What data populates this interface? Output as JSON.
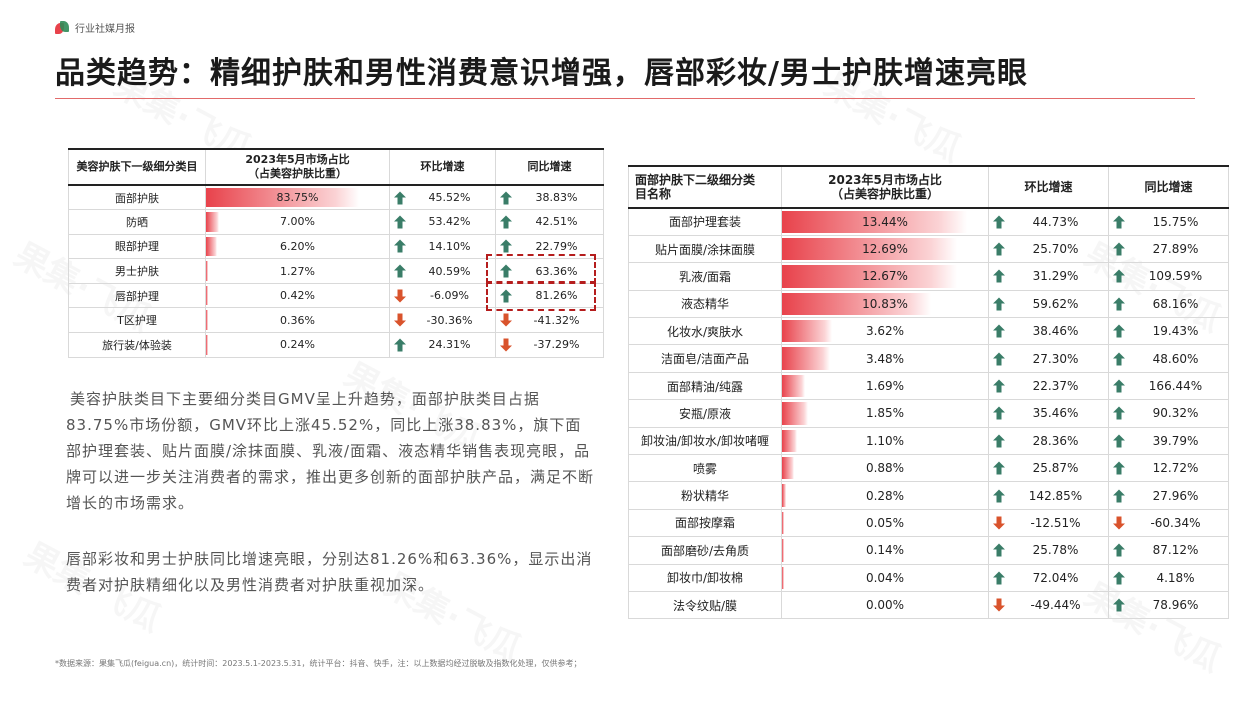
{
  "header": {
    "brand": "行业社媒月报"
  },
  "title": "品类趋势：精细护肤和男性消费意识增强，唇部彩妆/男士护肤增速亮眼",
  "colors": {
    "accent": "#e8424b",
    "up": "#3a7d68",
    "down": "#d9532c",
    "highlight_box": "#b51d1d"
  },
  "table1": {
    "headers": [
      "美容护肤下一级细分类目",
      "2023年5月市场占比\n（占美容护肤比重）",
      "环比增速",
      "同比增速"
    ],
    "rows": [
      {
        "name": "面部护肤",
        "share": "83.75%",
        "share_num": 83.75,
        "mom": "45.52%",
        "mom_dir": "up",
        "yoy": "38.83%",
        "yoy_dir": "up"
      },
      {
        "name": "防晒",
        "share": "7.00%",
        "share_num": 7.0,
        "mom": "53.42%",
        "mom_dir": "up",
        "yoy": "42.51%",
        "yoy_dir": "up"
      },
      {
        "name": "眼部护理",
        "share": "6.20%",
        "share_num": 6.2,
        "mom": "14.10%",
        "mom_dir": "up",
        "yoy": "22.79%",
        "yoy_dir": "up"
      },
      {
        "name": "男士护肤",
        "share": "1.27%",
        "share_num": 1.27,
        "mom": "40.59%",
        "mom_dir": "up",
        "yoy": "63.36%",
        "yoy_dir": "up"
      },
      {
        "name": "唇部护理",
        "share": "0.42%",
        "share_num": 0.42,
        "mom": "-6.09%",
        "mom_dir": "down",
        "yoy": "81.26%",
        "yoy_dir": "up"
      },
      {
        "name": "T区护理",
        "share": "0.36%",
        "share_num": 0.36,
        "mom": "-30.36%",
        "mom_dir": "down",
        "yoy": "-41.32%",
        "yoy_dir": "down"
      },
      {
        "name": "旅行装/体验装",
        "share": "0.24%",
        "share_num": 0.24,
        "mom": "24.31%",
        "mom_dir": "up",
        "yoy": "-37.29%",
        "yoy_dir": "down"
      }
    ]
  },
  "table2": {
    "headers": [
      "面部护肤下二级细分类\n目名称",
      "2023年5月市场占比\n（占美容护肤比重）",
      "环比增速",
      "同比增速"
    ],
    "rows": [
      {
        "name": "面部护理套装",
        "share": "13.44%",
        "share_num": 13.44,
        "mom": "44.73%",
        "mom_dir": "up",
        "yoy": "15.75%",
        "yoy_dir": "up"
      },
      {
        "name": "贴片面膜/涂抹面膜",
        "share": "12.69%",
        "share_num": 12.69,
        "mom": "25.70%",
        "mom_dir": "up",
        "yoy": "27.89%",
        "yoy_dir": "up"
      },
      {
        "name": "乳液/面霜",
        "share": "12.67%",
        "share_num": 12.67,
        "mom": "31.29%",
        "mom_dir": "up",
        "yoy": "109.59%",
        "yoy_dir": "up"
      },
      {
        "name": "液态精华",
        "share": "10.83%",
        "share_num": 10.83,
        "mom": "59.62%",
        "mom_dir": "up",
        "yoy": "68.16%",
        "yoy_dir": "up"
      },
      {
        "name": "化妆水/爽肤水",
        "share": "3.62%",
        "share_num": 3.62,
        "mom": "38.46%",
        "mom_dir": "up",
        "yoy": "19.43%",
        "yoy_dir": "up"
      },
      {
        "name": "洁面皂/洁面产品",
        "share": "3.48%",
        "share_num": 3.48,
        "mom": "27.30%",
        "mom_dir": "up",
        "yoy": "48.60%",
        "yoy_dir": "up"
      },
      {
        "name": "面部精油/纯露",
        "share": "1.69%",
        "share_num": 1.69,
        "mom": "22.37%",
        "mom_dir": "up",
        "yoy": "166.44%",
        "yoy_dir": "up"
      },
      {
        "name": "安瓶/原液",
        "share": "1.85%",
        "share_num": 1.85,
        "mom": "35.46%",
        "mom_dir": "up",
        "yoy": "90.32%",
        "yoy_dir": "up"
      },
      {
        "name": "卸妆油/卸妆水/卸妆啫喱",
        "share": "1.10%",
        "share_num": 1.1,
        "mom": "28.36%",
        "mom_dir": "up",
        "yoy": "39.79%",
        "yoy_dir": "up"
      },
      {
        "name": "喷雾",
        "share": "0.88%",
        "share_num": 0.88,
        "mom": "25.87%",
        "mom_dir": "up",
        "yoy": "12.72%",
        "yoy_dir": "up"
      },
      {
        "name": "粉状精华",
        "share": "0.28%",
        "share_num": 0.28,
        "mom": "142.85%",
        "mom_dir": "up",
        "yoy": "27.96%",
        "yoy_dir": "up"
      },
      {
        "name": "面部按摩霜",
        "share": "0.05%",
        "share_num": 0.05,
        "mom": "-12.51%",
        "mom_dir": "down",
        "yoy": "-60.34%",
        "yoy_dir": "down"
      },
      {
        "name": "面部磨砂/去角质",
        "share": "0.14%",
        "share_num": 0.14,
        "mom": "25.78%",
        "mom_dir": "up",
        "yoy": "87.12%",
        "yoy_dir": "up"
      },
      {
        "name": "卸妆巾/卸妆棉",
        "share": "0.04%",
        "share_num": 0.04,
        "mom": "72.04%",
        "mom_dir": "up",
        "yoy": "4.18%",
        "yoy_dir": "up"
      },
      {
        "name": "法令纹贴/膜",
        "share": "0.00%",
        "share_num": 0.0,
        "mom": "-49.44%",
        "mom_dir": "down",
        "yoy": "78.96%",
        "yoy_dir": "up"
      }
    ]
  },
  "paragraphs": {
    "p1": "美容护肤类目下主要细分类目GMV呈上升趋势，面部护肤类目占据83.75%市场份额，GMV环比上涨45.52%，同比上涨38.83%，旗下面部护理套装、贴片面膜/涂抹面膜、乳液/面霜、液态精华销售表现亮眼，品牌可以进一步关注消费者的需求，推出更多创新的面部护肤产品，满足不断增长的市场需求。",
    "p2": "唇部彩妆和男士护肤同比增速亮眼，分别达81.26%和63.36%，显示出消费者对护肤精细化以及男性消费者对护肤重视加深。"
  },
  "footnote": "*数据来源：果集飞瓜(feigua.cn)，统计时间：2023.5.1-2023.5.31，统计平台：抖音、快手，注：以上数据均经过脱敏及指数化处理，仅供参考；",
  "watermark": "果集·飞瓜"
}
